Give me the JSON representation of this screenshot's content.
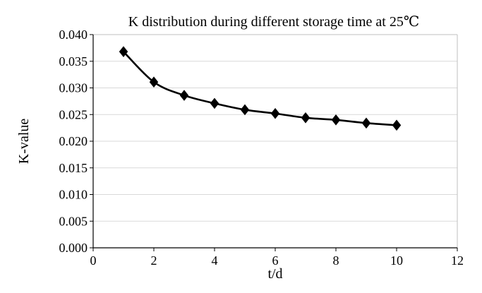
{
  "chart_data": {
    "type": "line",
    "title": "K distribution during different storage time at 25℃",
    "xlabel": "t/d",
    "ylabel": "K-value",
    "xlim": [
      0,
      12
    ],
    "ylim": [
      0,
      0.04
    ],
    "x_ticks": [
      "0",
      "2",
      "4",
      "6",
      "8",
      "10",
      "12"
    ],
    "y_ticks": [
      "0.000",
      "0.005",
      "0.010",
      "0.015",
      "0.020",
      "0.025",
      "0.030",
      "0.035",
      "0.040"
    ],
    "grid": true,
    "legend": "none",
    "marker": "diamond",
    "line_color": "#000000",
    "series": [
      {
        "x": [
          1,
          2,
          3,
          4,
          5,
          6,
          7,
          8,
          9,
          10
        ],
        "values": [
          0.0368,
          0.0311,
          0.0286,
          0.0271,
          0.0259,
          0.0252,
          0.0244,
          0.024,
          0.0234,
          0.023
        ]
      }
    ]
  }
}
